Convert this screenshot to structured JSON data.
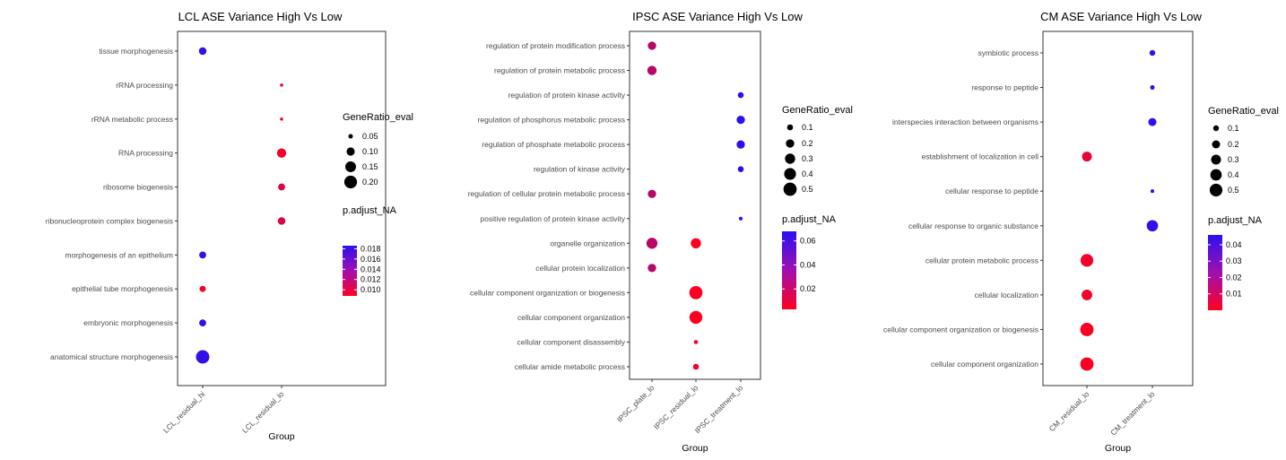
{
  "chart_data": [
    {
      "type": "scatter",
      "title": "LCL ASE Variance High Vs Low",
      "xlabel": "Group",
      "groups": [
        "LCL_residual_hi",
        "LCL_residual_lo"
      ],
      "terms": [
        "tissue morphogenesis",
        "rRNA processing",
        "rRNA metabolic process",
        "RNA processing",
        "ribosome biogenesis",
        "ribonucleoprotein complex biogenesis",
        "morphogenesis of an epithelium",
        "epithelial tube morphogenesis",
        "embryonic morphogenesis",
        "anatomical structure morphogenesis"
      ],
      "points": [
        {
          "term": "tissue morphogenesis",
          "group": "LCL_residual_hi",
          "gene_ratio": 0.09,
          "p_adjust": 0.0182
        },
        {
          "term": "rRNA processing",
          "group": "LCL_residual_lo",
          "gene_ratio": 0.04,
          "p_adjust": 0.0092
        },
        {
          "term": "rRNA metabolic process",
          "group": "LCL_residual_lo",
          "gene_ratio": 0.04,
          "p_adjust": 0.0092
        },
        {
          "term": "RNA processing",
          "group": "LCL_residual_lo",
          "gene_ratio": 0.12,
          "p_adjust": 0.0092
        },
        {
          "term": "ribosome biogenesis",
          "group": "LCL_residual_lo",
          "gene_ratio": 0.08,
          "p_adjust": 0.0105
        },
        {
          "term": "ribonucleoprotein complex biogenesis",
          "group": "LCL_residual_lo",
          "gene_ratio": 0.09,
          "p_adjust": 0.0105
        },
        {
          "term": "morphogenesis of an epithelium",
          "group": "LCL_residual_hi",
          "gene_ratio": 0.08,
          "p_adjust": 0.0182
        },
        {
          "term": "epithelial tube morphogenesis",
          "group": "LCL_residual_hi",
          "gene_ratio": 0.07,
          "p_adjust": 0.0092
        },
        {
          "term": "embryonic morphogenesis",
          "group": "LCL_residual_hi",
          "gene_ratio": 0.08,
          "p_adjust": 0.0182
        },
        {
          "term": "anatomical structure morphogenesis",
          "group": "LCL_residual_hi",
          "gene_ratio": 0.22,
          "p_adjust": 0.0182
        }
      ],
      "size_legend": {
        "title": "GeneRatio_eval",
        "values": [
          0.05,
          0.1,
          0.15,
          0.2
        ],
        "labels": [
          "0.05",
          "0.10",
          "0.15",
          "0.20"
        ],
        "domain": [
          0.04,
          0.22
        ]
      },
      "color_legend": {
        "title": "p.adjust_NA",
        "ticks": [
          0.01,
          0.012,
          0.014,
          0.016,
          0.018
        ],
        "tick_labels": [
          "0.010",
          "0.012",
          "0.014",
          "0.016",
          "0.018"
        ],
        "domain": [
          0.0088,
          0.0186
        ]
      }
    },
    {
      "type": "scatter",
      "title": "IPSC ASE Variance High Vs Low",
      "xlabel": "Group",
      "groups": [
        "IPSC_plate_lo",
        "IPSC_residual_lo",
        "IPSC_treatment_lo"
      ],
      "terms": [
        "regulation of protein modification process",
        "regulation of protein metabolic process",
        "regulation of protein kinase activity",
        "regulation of phosphorus metabolic process",
        "regulation of phosphate metabolic process",
        "regulation of kinase activity",
        "regulation of cellular protein metabolic process",
        "positive regulation of protein kinase activity",
        "organelle organization",
        "cellular protein localization",
        "cellular component organization or biogenesis",
        "cellular component organization",
        "cellular component disassembly",
        "cellular amide metabolic process"
      ],
      "points": [
        {
          "term": "regulation of protein modification process",
          "group": "IPSC_plate_lo",
          "gene_ratio": 0.2,
          "p_adjust": 0.025
        },
        {
          "term": "regulation of protein metabolic process",
          "group": "IPSC_plate_lo",
          "gene_ratio": 0.25,
          "p_adjust": 0.025
        },
        {
          "term": "regulation of protein kinase activity",
          "group": "IPSC_treatment_lo",
          "gene_ratio": 0.1,
          "p_adjust": 0.068
        },
        {
          "term": "regulation of phosphorus metabolic process",
          "group": "IPSC_treatment_lo",
          "gene_ratio": 0.2,
          "p_adjust": 0.068
        },
        {
          "term": "regulation of phosphate metabolic process",
          "group": "IPSC_treatment_lo",
          "gene_ratio": 0.2,
          "p_adjust": 0.068
        },
        {
          "term": "regulation of kinase activity",
          "group": "IPSC_treatment_lo",
          "gene_ratio": 0.1,
          "p_adjust": 0.068
        },
        {
          "term": "regulation of cellular protein metabolic process",
          "group": "IPSC_plate_lo",
          "gene_ratio": 0.2,
          "p_adjust": 0.025
        },
        {
          "term": "positive regulation of protein kinase activity",
          "group": "IPSC_treatment_lo",
          "gene_ratio": 0.04,
          "p_adjust": 0.068
        },
        {
          "term": "organelle organization",
          "group": "IPSC_plate_lo",
          "gene_ratio": 0.35,
          "p_adjust": 0.025
        },
        {
          "term": "organelle organization",
          "group": "IPSC_residual_lo",
          "gene_ratio": 0.3,
          "p_adjust": 0.004
        },
        {
          "term": "cellular protein localization",
          "group": "IPSC_plate_lo",
          "gene_ratio": 0.2,
          "p_adjust": 0.025
        },
        {
          "term": "cellular component organization or biogenesis",
          "group": "IPSC_residual_lo",
          "gene_ratio": 0.5,
          "p_adjust": 0.004
        },
        {
          "term": "cellular component organization",
          "group": "IPSC_residual_lo",
          "gene_ratio": 0.48,
          "p_adjust": 0.004
        },
        {
          "term": "cellular component disassembly",
          "group": "IPSC_residual_lo",
          "gene_ratio": 0.05,
          "p_adjust": 0.004
        },
        {
          "term": "cellular amide metabolic process",
          "group": "IPSC_residual_lo",
          "gene_ratio": 0.1,
          "p_adjust": 0.006
        }
      ],
      "size_legend": {
        "title": "GeneRatio_eval",
        "values": [
          0.1,
          0.2,
          0.3,
          0.4,
          0.5
        ],
        "labels": [
          "0.1",
          "0.2",
          "0.3",
          "0.4",
          "0.5"
        ],
        "domain": [
          0.03,
          0.52
        ]
      },
      "color_legend": {
        "title": "p.adjust_NA",
        "ticks": [
          0.02,
          0.04,
          0.06
        ],
        "tick_labels": [
          "0.02",
          "0.04",
          "0.06"
        ],
        "domain": [
          0.003,
          0.068
        ]
      }
    },
    {
      "type": "scatter",
      "title": "CM ASE Variance High Vs Low",
      "xlabel": "Group",
      "groups": [
        "CM_residual_lo",
        "CM_treatment_lo"
      ],
      "terms": [
        "symbiotic process",
        "response to peptide",
        "interspecies interaction between organisms",
        "establishment of localization in cell",
        "cellular response to peptide",
        "cellular response to organic substance",
        "cellular protein metabolic process",
        "cellular localization",
        "cellular component organization or biogenesis",
        "cellular component organization"
      ],
      "points": [
        {
          "term": "symbiotic process",
          "group": "CM_treatment_lo",
          "gene_ratio": 0.1,
          "p_adjust": 0.045
        },
        {
          "term": "response to peptide",
          "group": "CM_treatment_lo",
          "gene_ratio": 0.06,
          "p_adjust": 0.045
        },
        {
          "term": "interspecies interaction between organisms",
          "group": "CM_treatment_lo",
          "gene_ratio": 0.2,
          "p_adjust": 0.045
        },
        {
          "term": "establishment of localization in cell",
          "group": "CM_residual_lo",
          "gene_ratio": 0.3,
          "p_adjust": 0.005
        },
        {
          "term": "cellular response to peptide",
          "group": "CM_treatment_lo",
          "gene_ratio": 0.04,
          "p_adjust": 0.045
        },
        {
          "term": "cellular response to organic substance",
          "group": "CM_treatment_lo",
          "gene_ratio": 0.4,
          "p_adjust": 0.045
        },
        {
          "term": "cellular protein metabolic process",
          "group": "CM_residual_lo",
          "gene_ratio": 0.5,
          "p_adjust": 0.002
        },
        {
          "term": "cellular localization",
          "group": "CM_residual_lo",
          "gene_ratio": 0.35,
          "p_adjust": 0.002
        },
        {
          "term": "cellular component organization or biogenesis",
          "group": "CM_residual_lo",
          "gene_ratio": 0.55,
          "p_adjust": 0.001
        },
        {
          "term": "cellular component organization",
          "group": "CM_residual_lo",
          "gene_ratio": 0.55,
          "p_adjust": 0.001
        }
      ],
      "size_legend": {
        "title": "GeneRatio_eval",
        "values": [
          0.1,
          0.2,
          0.3,
          0.4,
          0.5
        ],
        "labels": [
          "0.1",
          "0.2",
          "0.3",
          "0.4",
          "0.5"
        ],
        "domain": [
          0.03,
          0.56
        ]
      },
      "color_legend": {
        "title": "p.adjust_NA",
        "ticks": [
          0.01,
          0.02,
          0.03,
          0.04
        ],
        "tick_labels": [
          "0.01",
          "0.02",
          "0.03",
          "0.04"
        ],
        "domain": [
          0.0,
          0.046
        ]
      }
    }
  ],
  "colors": {
    "low_p": "#ff0020",
    "high_p": "#2c10f0",
    "axis": "#333333",
    "tick_label": "#4d4d4d"
  }
}
